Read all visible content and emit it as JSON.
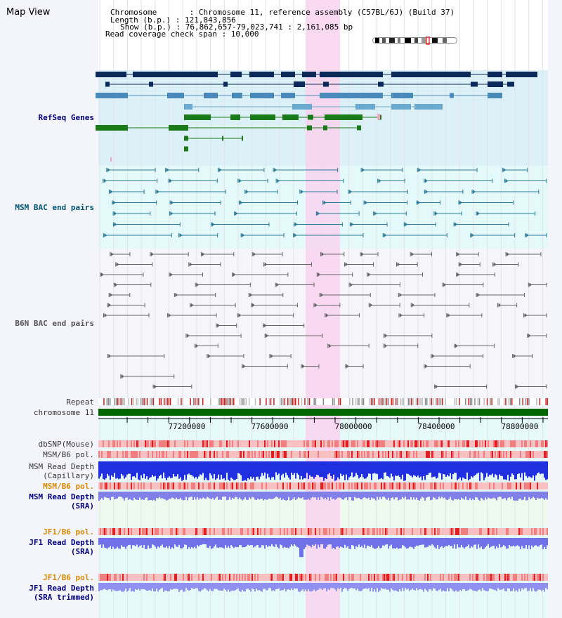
{
  "title": "Map View",
  "info": {
    "chromosome": "Chromosome       : Chromosome 11, reference assembly (C57BL/6J) (Build 37)",
    "length": "Length (b.p.) : 121,843,856",
    "show": "Show (b.p.) : 76,862,657-79,023,741 : 2,161,085 bp",
    "coverage": "Read coverage check span : 10,000"
  },
  "tracks": {
    "refseq": "RefSeq Genes",
    "msm_bac": "MSM BAC end pairs",
    "b6n_bac": "B6N BAC end pairs",
    "repeat": "Repeat",
    "chromosome": "chromosome 11",
    "dbsnp": "dbSNP(Mouse)",
    "msm_b6_pol1": "MSM/B6 pol.",
    "msm_depth_cap": "MSM Read Depth\n(Capillary)",
    "msm_b6_pol2": "MSM/B6 pol.",
    "msm_depth_sra": "MSM Read Depth\n(SRA)",
    "jf1_b6_pol1": "JF1/B6 pol.",
    "jf1_depth_sra": "JF1 Read Depth\n(SRA)",
    "jf1_b6_pol2": "JF1/B6 pol.",
    "jf1_depth_trim": "JF1 Read Depth\n(SRA trimmed)"
  },
  "axis": {
    "ticks": [
      "77200000",
      "77600000",
      "78000000",
      "78400000",
      "78800000"
    ]
  },
  "colors": {
    "refseq_bg": "#dcf0f8",
    "msm_bg": "#e4fafa",
    "b6n_bg": "#f6f6fa",
    "highlight": "#f9d4ee",
    "chromosome": "#006600",
    "label_navy": "#000080",
    "label_teal": "#005577",
    "label_orange": "#dd8800",
    "label_gray": "#333333"
  }
}
